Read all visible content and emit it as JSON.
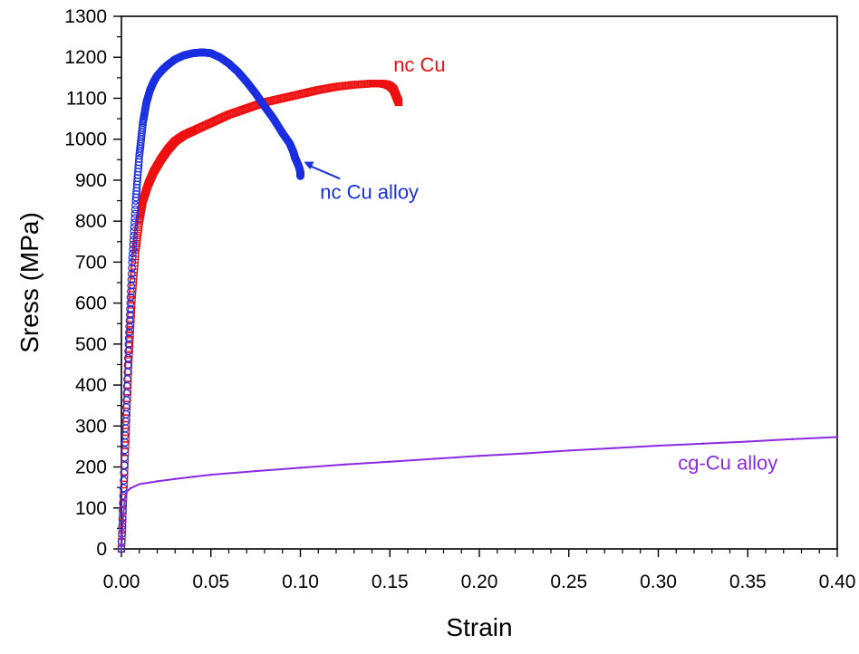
{
  "chart_data": {
    "type": "scatter",
    "title": "",
    "xlabel": "Strain",
    "ylabel": "Sress (MPa)",
    "xlim": [
      0,
      0.4
    ],
    "ylim": [
      0,
      1300
    ],
    "x_ticks": [
      "0.00",
      "0.05",
      "0.10",
      "0.15",
      "0.20",
      "0.25",
      "0.30",
      "0.35",
      "0.40"
    ],
    "y_ticks": [
      "0",
      "100",
      "200",
      "300",
      "400",
      "500",
      "600",
      "700",
      "800",
      "900",
      "1000",
      "1100",
      "1200",
      "1300"
    ],
    "grid": false,
    "series": [
      {
        "name": "nc Cu",
        "color": "#ee1111",
        "marker": "square",
        "x": [
          0.0,
          0.002,
          0.004,
          0.006,
          0.008,
          0.01,
          0.012,
          0.015,
          0.018,
          0.022,
          0.026,
          0.03,
          0.035,
          0.04,
          0.05,
          0.06,
          0.07,
          0.08,
          0.09,
          0.1,
          0.11,
          0.12,
          0.13,
          0.14,
          0.145,
          0.148,
          0.15,
          0.152,
          0.153,
          0.154,
          0.155
        ],
        "y": [
          0,
          220,
          450,
          620,
          730,
          800,
          850,
          890,
          920,
          950,
          975,
          995,
          1010,
          1020,
          1040,
          1060,
          1075,
          1090,
          1100,
          1110,
          1120,
          1128,
          1133,
          1136,
          1136,
          1134,
          1130,
          1122,
          1112,
          1100,
          1090
        ]
      },
      {
        "name": "nc Cu alloy",
        "color": "#1a2fe0",
        "marker": "circle",
        "x": [
          0.0,
          0.002,
          0.004,
          0.006,
          0.008,
          0.01,
          0.012,
          0.014,
          0.016,
          0.018,
          0.02,
          0.023,
          0.026,
          0.03,
          0.035,
          0.04,
          0.045,
          0.05,
          0.055,
          0.06,
          0.065,
          0.07,
          0.075,
          0.08,
          0.085,
          0.09,
          0.094,
          0.096,
          0.097,
          0.098,
          0.099,
          0.1,
          0.1
        ],
        "y": [
          0,
          260,
          500,
          700,
          850,
          960,
          1040,
          1090,
          1120,
          1140,
          1155,
          1170,
          1182,
          1195,
          1205,
          1210,
          1212,
          1210,
          1200,
          1185,
          1165,
          1140,
          1112,
          1080,
          1050,
          1015,
          990,
          970,
          955,
          945,
          935,
          920,
          910
        ]
      },
      {
        "name": "cg-Cu alloy",
        "color": "#8a2be2",
        "marker": "line",
        "x": [
          0.0,
          0.001,
          0.002,
          0.003,
          0.005,
          0.01,
          0.02,
          0.03,
          0.04,
          0.05,
          0.075,
          0.1,
          0.125,
          0.15,
          0.175,
          0.2,
          0.225,
          0.25,
          0.275,
          0.3,
          0.325,
          0.35,
          0.375,
          0.4
        ],
        "y": [
          0,
          80,
          125,
          140,
          148,
          158,
          165,
          171,
          176,
          181,
          190,
          198,
          206,
          213,
          220,
          227,
          233,
          240,
          246,
          252,
          257,
          262,
          268,
          273
        ]
      }
    ],
    "annotations": [
      {
        "text": "nc Cu",
        "color": "#ee1111",
        "x": 0.152,
        "y": 1165
      },
      {
        "text": "nc Cu alloy",
        "color": "#1a2fe0",
        "x": 0.111,
        "y": 855,
        "arrow_to": [
          0.102,
          945
        ]
      },
      {
        "text": "cg-Cu alloy",
        "color": "#8a2be2",
        "x": 0.311,
        "y": 193
      }
    ]
  }
}
